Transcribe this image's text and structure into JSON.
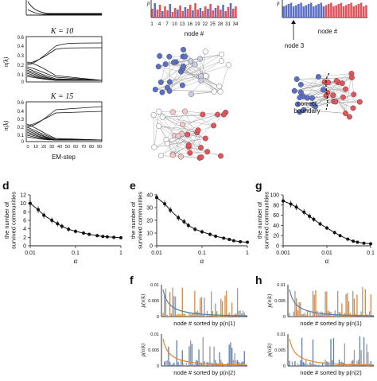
{
  "panels": {
    "left_column": {
      "plots": [
        {
          "k_label": "",
          "ylabel": ""
        },
        {
          "k_label": "K = 10",
          "ylabel": "π(k)"
        },
        {
          "k_label": "K = 15",
          "ylabel": "π(k)"
        }
      ],
      "xlabel": "EM-step",
      "xticks": [
        "0",
        "10",
        "20",
        "30",
        "40",
        "50",
        "60",
        "70",
        "80",
        "90"
      ]
    },
    "middle_top": {
      "xlabel": "node #",
      "xticks": [
        "1",
        "4",
        "7",
        "10",
        "13",
        "16",
        "19",
        "22",
        "25",
        "28",
        "31",
        "34"
      ]
    },
    "right_top": {
      "xlabel": "node #",
      "annotation": "node 3",
      "boundary_label_1": "correct",
      "boundary_label_2": "boundary"
    },
    "d": {
      "letter": "d",
      "ylabel_1": "the number of",
      "ylabel_2": "survived communities",
      "xlabel": "α",
      "xticks": [
        "0.01",
        "0.1",
        "1"
      ],
      "yticks": [
        "0",
        "2",
        "4",
        "6",
        "8",
        "10",
        "12"
      ]
    },
    "e": {
      "letter": "e",
      "ylabel_1": "the number of",
      "ylabel_2": "survived communities",
      "xlabel": "α",
      "xticks": [
        "0.01",
        "0.1",
        "1"
      ],
      "yticks": [
        "0",
        "10",
        "20",
        "30",
        "40"
      ]
    },
    "g": {
      "letter": "g",
      "ylabel_1": "the number of",
      "ylabel_2": "survived communities",
      "xlabel": "α",
      "xticks": [
        "0.001",
        "0.01",
        "0.1"
      ],
      "yticks": [
        "0",
        "20",
        "40",
        "60",
        "80",
        "100"
      ]
    },
    "f": {
      "letter": "f",
      "ylabel": "p(n|k)",
      "top_xlabel": "node # sorted by p(n|1)",
      "bottom_xlabel": "node # sorted by p(n|2)",
      "yticks": [
        "0",
        "0.005",
        "0.01"
      ]
    },
    "h": {
      "letter": "h",
      "ylabel": "p(n|k)",
      "top_xlabel": "node # sorted by p(n|1)",
      "bottom_xlabel": "node # sorted by p(n|2)",
      "yticks": [
        "0",
        "0.005",
        "0.01"
      ]
    }
  },
  "colors": {
    "blue": "#5b6fc4",
    "red": "#e0545a",
    "orange": "#e6862a",
    "gray": "#9a9a9a",
    "steel": "#5a7fb0"
  },
  "chart_data": [
    {
      "type": "line",
      "title": "",
      "xlabel": "α",
      "ylabel": "the number of survived communities",
      "x": [
        0.01,
        0.015,
        0.02,
        0.03,
        0.04,
        0.05,
        0.07,
        0.1,
        0.15,
        0.2,
        0.3,
        0.4,
        0.5,
        0.7,
        1.0
      ],
      "values": [
        10,
        8.5,
        7.2,
        6.0,
        5.2,
        4.6,
        3.9,
        3.4,
        3.0,
        2.7,
        2.4,
        2.2,
        2.1,
        2.0,
        1.9
      ],
      "xscale": "log",
      "xlim": [
        0.01,
        1
      ],
      "ylim": [
        0,
        12
      ]
    },
    {
      "type": "line",
      "title": "",
      "xlabel": "α",
      "ylabel": "the number of survived communities",
      "x": [
        0.01,
        0.015,
        0.02,
        0.03,
        0.04,
        0.05,
        0.07,
        0.1,
        0.15,
        0.2,
        0.3,
        0.4,
        0.5,
        0.7,
        1.0
      ],
      "values": [
        38,
        33,
        28,
        22,
        19,
        16,
        13,
        11,
        9,
        7.5,
        6,
        5,
        4,
        3.2,
        2.8
      ],
      "xscale": "log",
      "xlim": [
        0.01,
        1
      ],
      "ylim": [
        0,
        40
      ]
    },
    {
      "type": "line",
      "title": "",
      "xlabel": "α",
      "ylabel": "the number of survived communities",
      "x": [
        0.001,
        0.0015,
        0.002,
        0.003,
        0.004,
        0.005,
        0.007,
        0.01,
        0.015,
        0.02,
        0.03,
        0.04,
        0.05,
        0.07,
        0.1
      ],
      "values": [
        88,
        82,
        76,
        66,
        58,
        52,
        43,
        35,
        26,
        20,
        13,
        9,
        7,
        5,
        4
      ],
      "xscale": "log",
      "xlim": [
        0.001,
        0.1
      ],
      "ylim": [
        0,
        100
      ]
    }
  ]
}
